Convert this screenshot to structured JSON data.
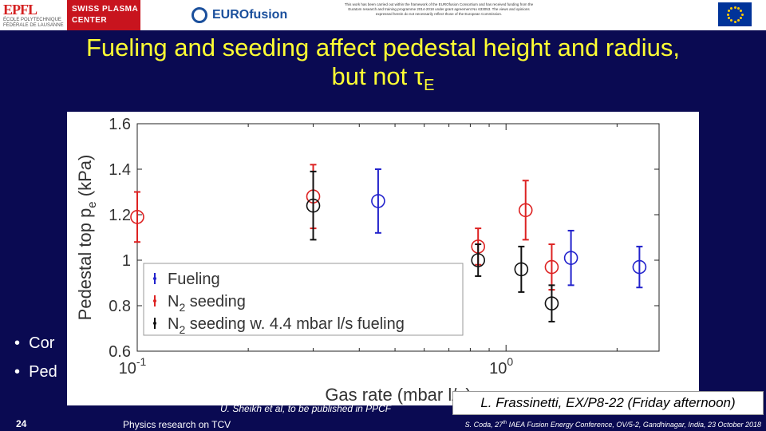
{
  "header": {
    "epfl_mark": "EPFL",
    "epfl_sub": "ÉCOLE POLYTECHNIQUE FÉDÉRALE DE LAUSANNE",
    "swiss_plasma_line1": "SWISS PLASMA",
    "swiss_plasma_line2": "CENTER",
    "eurofusion_label": "EUROfusion",
    "disclaimer": "This work has been carried out within the framework of the EUROfusion Consortium and has received funding from the Euratom research and training programme 2014-2018 under grant agreement No 633053. The views and opinions expressed herein do not necessarily reflect those of the European Commission.",
    "colors": {
      "epfl_red": "#d42020",
      "swiss_plasma_red": "#c8141e",
      "euro_blue": "#1a4f9c"
    }
  },
  "slide": {
    "title_line1": "Fueling and seeding affect pedestal height and radius,",
    "title_line2_prefix": "but not ",
    "title_tau": "τ",
    "title_sub": "E",
    "title_color": "#ffff33",
    "background": "#0a0a52"
  },
  "bullets": [
    "Cor",
    "Ped"
  ],
  "chart_data": {
    "type": "scatter",
    "xlabel": "Gas rate (mbar l/s)",
    "ylabel_main": "Pedestal top p",
    "ylabel_sub": "e",
    "ylabel_unit": " (kPa)",
    "xscale": "log",
    "xlim": [
      0.1,
      2.6
    ],
    "ylim": [
      0.6,
      1.6
    ],
    "yticks": [
      0.6,
      0.8,
      1,
      1.2,
      1.4,
      1.6
    ],
    "ytick_labels": [
      "0.6",
      "0.8",
      "1",
      "1.2",
      "1.4",
      "1.6"
    ],
    "xticks": [
      0.1,
      1,
      10
    ],
    "xtick_base": "10",
    "xtick_exps": [
      "-1",
      "0",
      "1"
    ],
    "legend_position": "lower-left",
    "series": [
      {
        "name": "Fueling",
        "name_sub": "",
        "name_suffix": "",
        "color": "#2222cc",
        "points": [
          {
            "x": 0.45,
            "y": 1.26,
            "err": 0.14
          },
          {
            "x": 1.5,
            "y": 1.01,
            "err": 0.12
          },
          {
            "x": 2.3,
            "y": 0.97,
            "err": 0.09
          }
        ]
      },
      {
        "name": "N",
        "name_sub": "2",
        "name_suffix": " seeding",
        "color": "#dd2222",
        "points": [
          {
            "x": 0.1,
            "y": 1.19,
            "err": 0.11
          },
          {
            "x": 0.3,
            "y": 1.28,
            "err": 0.14
          },
          {
            "x": 0.84,
            "y": 1.06,
            "err": 0.08
          },
          {
            "x": 1.13,
            "y": 1.22,
            "err": 0.13
          },
          {
            "x": 1.33,
            "y": 0.97,
            "err": 0.1
          }
        ]
      },
      {
        "name": "N",
        "name_sub": "2",
        "name_suffix": " seeding w. 4.4 mbar l/s fueling",
        "color": "#111111",
        "points": [
          {
            "x": 0.3,
            "y": 1.24,
            "err": 0.15
          },
          {
            "x": 0.84,
            "y": 1.0,
            "err": 0.07
          },
          {
            "x": 1.1,
            "y": 0.96,
            "err": 0.1
          },
          {
            "x": 1.33,
            "y": 0.81,
            "err": 0.08
          }
        ]
      }
    ]
  },
  "references": {
    "citation": "U. Sheikh et al, to be published in PPCF",
    "talk": "L. Frassinetti, EX/P8-22 (Friday afternoon)"
  },
  "footer": {
    "slide_number": "24",
    "left_text": "Physics research on TCV",
    "right_text_pre": "S. Coda, 27",
    "right_text_sup": "th",
    "right_text_post": " IAEA Fusion Energy Conference, OV/5-2, Gandhinagar, India, 23 October 2018"
  }
}
